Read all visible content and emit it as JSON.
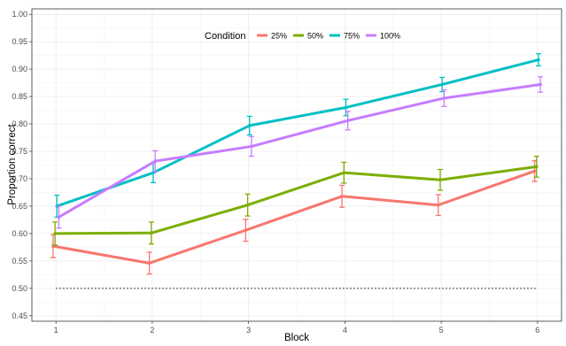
{
  "chart_data": {
    "type": "line",
    "title": "",
    "xlabel": "Block",
    "ylabel": "Proportion correct",
    "x": [
      1,
      2,
      3,
      4,
      5,
      6
    ],
    "x_ticks": [
      "1",
      "2",
      "3",
      "4",
      "5",
      "6"
    ],
    "xlim": [
      0.75,
      6.25
    ],
    "ylim": [
      0.44,
      1.01
    ],
    "y_ticks": [
      "0.45",
      "0.50",
      "0.55",
      "0.60",
      "0.65",
      "0.70",
      "0.75",
      "0.80",
      "0.85",
      "0.90",
      "0.95",
      "1.00"
    ],
    "grid": true,
    "legend": {
      "title": "Condition",
      "position": "top-inside"
    },
    "reference_line": {
      "y": 0.5,
      "x_range": [
        1,
        6
      ],
      "style": "dotted",
      "color": "#000000"
    },
    "series": [
      {
        "name": "25%",
        "color": "#F8766D",
        "values": [
          0.577,
          0.546,
          0.606,
          0.668,
          0.652,
          0.714
        ],
        "errors": [
          0.021,
          0.02,
          0.02,
          0.02,
          0.019,
          0.019
        ]
      },
      {
        "name": "50%",
        "color": "#7CAE00",
        "values": [
          0.6,
          0.601,
          0.652,
          0.711,
          0.698,
          0.722
        ],
        "errors": [
          0.021,
          0.02,
          0.02,
          0.019,
          0.019,
          0.019
        ]
      },
      {
        "name": "75%",
        "color": "#00BFC4",
        "values": [
          0.65,
          0.711,
          0.797,
          0.83,
          0.872,
          0.917
        ],
        "errors": [
          0.02,
          0.018,
          0.017,
          0.015,
          0.013,
          0.011
        ]
      },
      {
        "name": "100%",
        "color": "#C77CFF",
        "values": [
          0.63,
          0.732,
          0.759,
          0.806,
          0.847,
          0.872
        ],
        "errors": [
          0.02,
          0.019,
          0.018,
          0.017,
          0.015,
          0.014
        ]
      }
    ]
  }
}
